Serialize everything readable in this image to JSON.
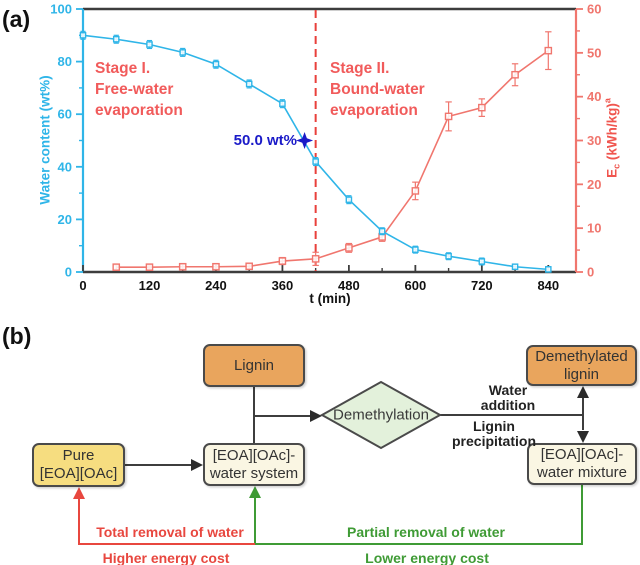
{
  "figure": {
    "panel_a_label": "(a)",
    "panel_b_label": "(b)"
  },
  "colors": {
    "water_curve": "#2FB5E8",
    "energy_curve": "#F0766E",
    "energy_label": "#F0554E",
    "axis_dark": "#3d3d3d",
    "stage_text": "#F15B5B",
    "dashed_line": "#E9403B",
    "threshold_blue": "#1A1AC8",
    "diagram_red": "#E8473F",
    "diagram_green": "#3F9B35",
    "orange_box": "#E9A55D",
    "yellow_box": "#F6DD80",
    "cream_box": "#FAF6E3",
    "diamond_fill": "#E3F1DB"
  },
  "chart_data": {
    "type": "line",
    "title": "",
    "xlabel": "t (min)",
    "ylabel_left": "Water content (wt%)",
    "ylabel_right_parts": {
      "pre": "E",
      "sub": "c",
      "mid": " (kWh/kg)",
      "sup": "a"
    },
    "xlim": [
      0,
      890
    ],
    "ylim_left": [
      0,
      100
    ],
    "ylim_right": [
      0,
      60
    ],
    "grid": false,
    "legend": "none",
    "xticks": {
      "major": [
        0,
        120,
        240,
        360,
        480,
        600,
        720,
        840
      ],
      "minor_step": 60
    },
    "yticks_left": {
      "major": [
        0,
        20,
        40,
        60,
        80,
        100
      ],
      "minor_step": 10
    },
    "yticks_right": {
      "major": [
        0,
        10,
        20,
        30,
        40,
        50,
        60
      ],
      "minor_step": 5
    },
    "series": [
      {
        "id": "energy-consumption-series",
        "name": "Ec (kWh/kg)",
        "axis": "right",
        "color": "#F0766E",
        "marker": "open-square",
        "x": [
          60,
          120,
          180,
          240,
          300,
          360,
          420,
          480,
          540,
          600,
          660,
          720,
          780,
          840
        ],
        "values": [
          1.1,
          1.1,
          1.2,
          1.2,
          1.3,
          2.5,
          3.0,
          5.5,
          8.0,
          18.5,
          35.5,
          37.5,
          45.0,
          50.5
        ],
        "errors": [
          0.5,
          0.5,
          0.5,
          0.5,
          0.5,
          0.8,
          1.5,
          1.0,
          1.0,
          2.0,
          3.3,
          2.0,
          2.5,
          4.3
        ]
      },
      {
        "id": "water-content-series",
        "name": "Water content (wt%)",
        "axis": "left",
        "color": "#2FB5E8",
        "marker": "open-square",
        "x": [
          0,
          60,
          120,
          180,
          240,
          300,
          360,
          420,
          480,
          540,
          600,
          660,
          720,
          780,
          840
        ],
        "values": [
          90,
          88.5,
          86.5,
          83.5,
          79,
          71.5,
          64,
          42,
          27.5,
          15.5,
          8.5,
          6,
          4,
          2,
          1
        ],
        "errors": [
          1.5,
          1.5,
          1.5,
          1.5,
          1.5,
          1.5,
          1.5,
          1.5,
          1.5,
          1.3,
          1.3,
          1.3,
          1.3,
          1.0,
          1.0
        ]
      }
    ],
    "annotations": {
      "stage1": {
        "lines": [
          "Stage I.",
          "Free-water",
          "evaporation"
        ]
      },
      "stage2": {
        "lines": [
          "Stage II.",
          "Bound-water",
          "evaporation"
        ]
      },
      "dashed_line_t": 420,
      "threshold_label": "50.0 wt%",
      "star": {
        "t": 400,
        "water_content": 50.0
      }
    }
  },
  "diagram": {
    "nodes": {
      "lignin": {
        "label": "Lignin"
      },
      "demethylated_lignin": {
        "lines": [
          "Demethylated",
          "lignin"
        ]
      },
      "pure_il": {
        "lines": [
          "Pure",
          "[EOA][OAc]"
        ]
      },
      "water_system": {
        "lines": [
          "[EOA][OAc]-",
          "water system"
        ]
      },
      "demethylation": {
        "label": "Demethylation"
      },
      "water_mixture": {
        "lines": [
          "[EOA][OAc]-",
          "water mixture"
        ]
      }
    },
    "edge_labels": {
      "water_addition": {
        "lines": [
          "Water",
          "addition"
        ]
      },
      "lignin_precipitation": {
        "lines": [
          "Lignin",
          "precipitation"
        ]
      },
      "total_removal": "Total removal of water",
      "higher_cost": "Higher energy cost",
      "partial_removal": "Partial removal of water",
      "lower_cost": "Lower energy cost"
    }
  }
}
